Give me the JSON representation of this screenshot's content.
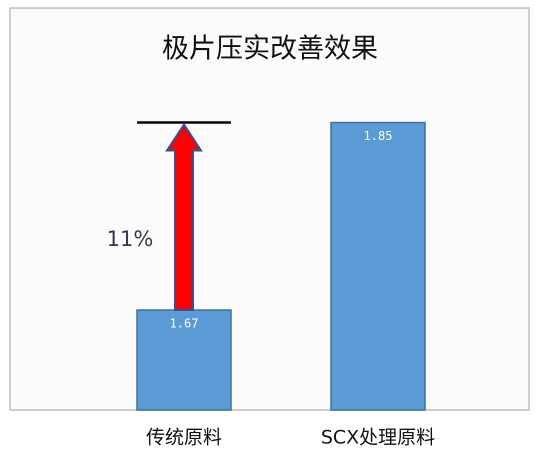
{
  "chart_data": {
    "type": "bar",
    "title": "极片压实改善效果",
    "categories": [
      "传统原料",
      "SCX处理原料"
    ],
    "values": [
      1.67,
      1.85
    ],
    "color": "#5b9bd5",
    "ylim": [
      1.574,
      1.96
    ],
    "annotation": "11%"
  }
}
